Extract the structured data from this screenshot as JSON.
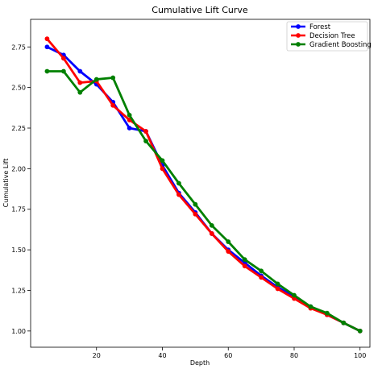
{
  "chart_data": {
    "type": "line",
    "title": "Cumulative Lift Curve",
    "xlabel": "Depth",
    "ylabel": "Cumulative Lift",
    "xlim": [
      0,
      103
    ],
    "ylim": [
      0.9,
      2.92
    ],
    "xticks": [
      20,
      40,
      60,
      80,
      100
    ],
    "yticks": [
      1.0,
      1.25,
      1.5,
      1.75,
      2.0,
      2.25,
      2.5,
      2.75
    ],
    "ytick_labels": [
      "1.00",
      "1.25",
      "1.50",
      "1.75",
      "2.00",
      "2.25",
      "2.50",
      "2.75"
    ],
    "grid": false,
    "legend_position": "top-right",
    "series": [
      {
        "name": "Forest",
        "color": "#0000ff",
        "x": [
          5,
          10,
          15,
          20,
          25,
          30,
          35,
          40,
          45,
          50,
          55,
          60,
          65,
          70,
          75,
          80,
          85,
          90,
          95,
          100
        ],
        "y": [
          2.75,
          2.7,
          2.6,
          2.52,
          2.41,
          2.25,
          2.23,
          2.02,
          1.85,
          1.73,
          1.6,
          1.5,
          1.42,
          1.34,
          1.27,
          1.21,
          1.15,
          1.1,
          1.05,
          1.0
        ]
      },
      {
        "name": "Decision Tree",
        "color": "#ff0000",
        "x": [
          5,
          10,
          15,
          20,
          25,
          30,
          35,
          40,
          45,
          50,
          55,
          60,
          65,
          70,
          75,
          80,
          85,
          90,
          95,
          100
        ],
        "y": [
          2.8,
          2.68,
          2.53,
          2.54,
          2.39,
          2.3,
          2.23,
          2.0,
          1.84,
          1.72,
          1.6,
          1.49,
          1.4,
          1.33,
          1.26,
          1.2,
          1.14,
          1.1,
          1.05,
          1.0
        ]
      },
      {
        "name": "Gradient Boosting",
        "color": "#008000",
        "x": [
          5,
          10,
          15,
          20,
          25,
          30,
          35,
          40,
          45,
          50,
          55,
          60,
          65,
          70,
          75,
          80,
          85,
          90,
          95,
          100
        ],
        "y": [
          2.6,
          2.6,
          2.47,
          2.55,
          2.56,
          2.33,
          2.17,
          2.05,
          1.91,
          1.78,
          1.65,
          1.55,
          1.44,
          1.37,
          1.29,
          1.22,
          1.15,
          1.11,
          1.05,
          1.0
        ]
      }
    ]
  }
}
